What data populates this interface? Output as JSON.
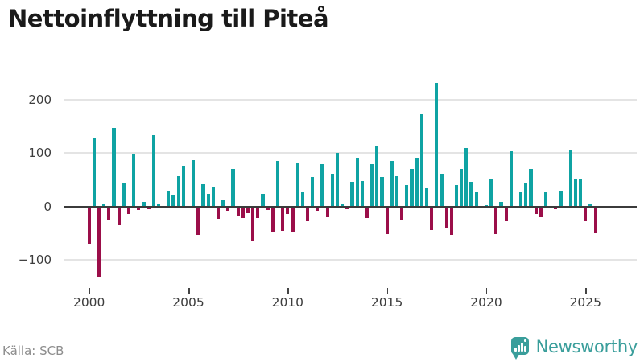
{
  "title": "Nettoinflyttning till Piteå",
  "source": "Källa: SCB",
  "brand": {
    "name": "Newsworthy"
  },
  "chart_data": {
    "type": "bar",
    "title": "Nettoinflyttning till Piteå",
    "xlabel": "",
    "ylabel": "",
    "x_tick_labels": [
      "2000",
      "2005",
      "2010",
      "2015",
      "2020",
      "2025"
    ],
    "y_tick_values": [
      200,
      100,
      0,
      -100
    ],
    "y_tick_labels": [
      "200",
      "100",
      "0",
      "−100"
    ],
    "ylim": [
      -150,
      255
    ],
    "grid": "horizontal",
    "legend": "none",
    "frequency": "quarterly",
    "start_period": "2000-Q1",
    "end_period": "2025-Q3",
    "colors": {
      "positive": "#0fa3a3",
      "negative": "#9b0e49",
      "axis": "#3b3b3b",
      "grid": "#e4e4e4"
    },
    "series": [
      {
        "name": "Nettoinflyttning",
        "values": [
          -69,
          127,
          -130,
          6,
          -24,
          147,
          -34,
          44,
          -12,
          97,
          -5,
          8,
          -4,
          134,
          5,
          0,
          29,
          21,
          57,
          76,
          0,
          87,
          -51,
          42,
          24,
          37,
          -22,
          12,
          -6,
          71,
          -17,
          -20,
          -11,
          -64,
          -20,
          24,
          -5,
          -45,
          86,
          -44,
          -13,
          -47,
          81,
          26,
          -26,
          55,
          -6,
          80,
          -18,
          62,
          100,
          6,
          -4,
          46,
          92,
          48,
          -20,
          79,
          114,
          55,
          -50,
          85,
          57,
          -23,
          40,
          71,
          92,
          173,
          34,
          -43,
          232,
          62,
          -39,
          -51,
          40,
          71,
          109,
          47,
          27,
          0,
          3,
          52,
          -50,
          8,
          -26,
          103,
          0,
          26,
          44,
          71,
          -13,
          -18,
          26,
          0,
          -4,
          30,
          0,
          105,
          52,
          51,
          -26,
          5,
          -49
        ]
      }
    ]
  }
}
